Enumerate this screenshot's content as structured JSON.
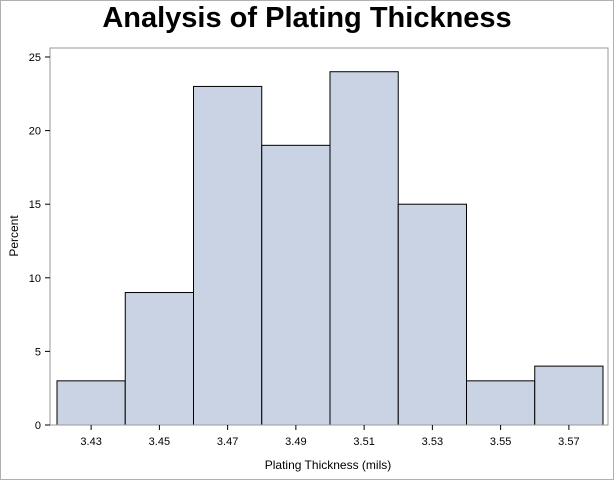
{
  "chart_data": {
    "type": "bar",
    "title": "Analysis of Plating Thickness",
    "xlabel": "Plating Thickness (mils)",
    "ylabel": "Percent",
    "categories": [
      "3.43",
      "3.45",
      "3.47",
      "3.49",
      "3.51",
      "3.53",
      "3.55",
      "3.57"
    ],
    "values": [
      3,
      9,
      23,
      19,
      24,
      15,
      3,
      4
    ],
    "ylim": [
      0,
      25
    ],
    "yticks": [
      0,
      5,
      10,
      15,
      20,
      25
    ],
    "grid": false,
    "bar_color": "#c9d3e3"
  }
}
